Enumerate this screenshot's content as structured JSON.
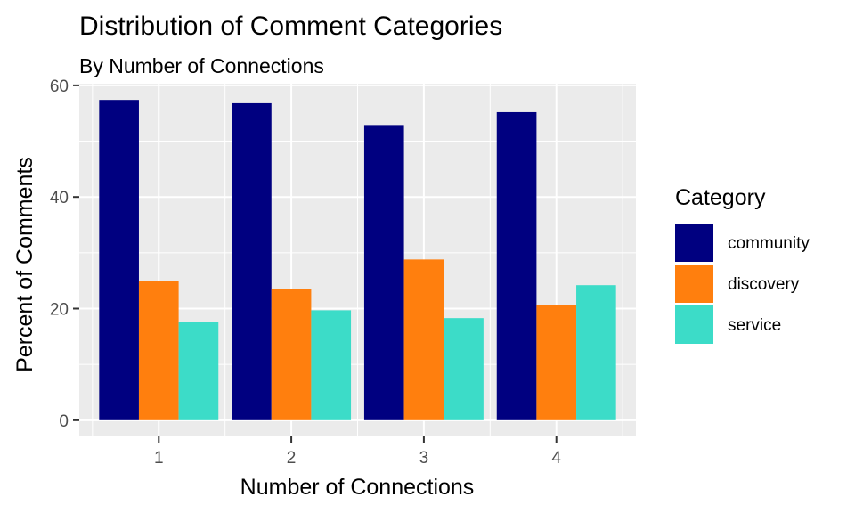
{
  "chart_data": {
    "type": "bar",
    "title": "Distribution of Comment Categories",
    "subtitle": "By Number of Connections",
    "xlabel": "Number of Connections",
    "ylabel": "Percent of Comments",
    "categories": [
      "1",
      "2",
      "3",
      "4"
    ],
    "series": [
      {
        "name": "community",
        "color": "#000080",
        "values": [
          57.4,
          56.8,
          52.9,
          55.2
        ]
      },
      {
        "name": "discovery",
        "color": "#FF7F0E",
        "values": [
          25.0,
          23.5,
          28.8,
          20.6
        ]
      },
      {
        "name": "service",
        "color": "#3CDCC8",
        "values": [
          17.6,
          19.7,
          18.3,
          24.2
        ]
      }
    ],
    "ylim": [
      -2.9,
      60.3
    ],
    "yticks": [
      0,
      20,
      40,
      60
    ],
    "grid": true,
    "legend": {
      "title": "Category",
      "position": "right"
    }
  }
}
